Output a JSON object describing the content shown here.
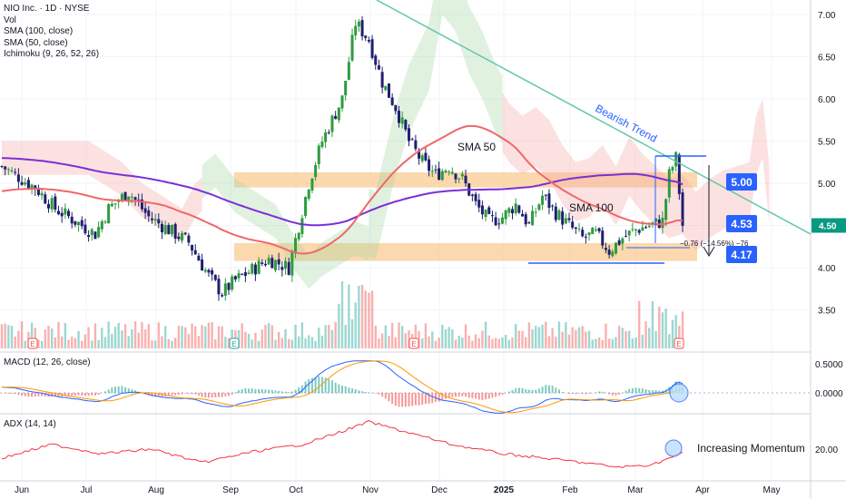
{
  "legend": {
    "title": "NIO Inc. · 1D · NYSE",
    "vol": "Vol",
    "sma100": "SMA (100, close)",
    "sma50": "SMA (50, close)",
    "ichimoku": "Ichimoku (9, 26, 52, 26)"
  },
  "colors": {
    "up": "#26a69a",
    "down": "#ef5350",
    "candle_up_body": "#2e9b3e",
    "candle_down_body": "#1f1f6e",
    "sma50": "#f06767",
    "sma100": "#7b2fd6",
    "zone": "#f9c88a",
    "trend": "#5fc8a8",
    "label_blue": "#2962ff",
    "price_badge": "#089981",
    "macd": "#2962ff",
    "signal": "#ff9800",
    "adx": "#f23645"
  },
  "chart_data": {
    "type": "candlestick",
    "title": "NIO Inc. · 1D · NYSE",
    "indicators": [
      "Vol",
      "SMA (100, close)",
      "SMA (50, close)",
      "Ichimoku (9, 26, 52, 26)"
    ],
    "x_axis_labels": [
      "Jun",
      "Jul",
      "Aug",
      "Sep",
      "Oct",
      "Nov",
      "Dec",
      "2025",
      "Feb",
      "Mar",
      "Apr",
      "May"
    ],
    "price_axis": {
      "ticks": [
        "7.00",
        "6.50",
        "6.00",
        "5.50",
        "5.00",
        "4.50",
        "4.00",
        "3.50"
      ],
      "range": [
        3.1,
        7.2
      ]
    },
    "current_price": "4.50",
    "levels": [
      {
        "label": "5.00",
        "value": 5.0
      },
      {
        "label": "4.53",
        "value": 4.53
      },
      {
        "label": "4.17",
        "value": 4.17
      }
    ],
    "support_resistance_zones": [
      {
        "low": 4.95,
        "high": 5.13
      },
      {
        "low": 4.08,
        "high": 4.29
      }
    ],
    "annotations": {
      "sma50_label": "SMA 50",
      "sma100_label": "SMA 100",
      "trend_label": "Bearish Trend",
      "measure": "−0.76 (−14.56%) −76",
      "momentum": "Increasing Momentum"
    },
    "earnings_markers": [
      "E",
      "E",
      "E",
      "E"
    ],
    "macd": {
      "title": "MACD (12, 26, close)",
      "ticks": [
        "0.5000",
        "0.0000"
      ]
    },
    "adx": {
      "title": "ADX (14, 14)",
      "ticks": [
        "20.00"
      ]
    }
  }
}
